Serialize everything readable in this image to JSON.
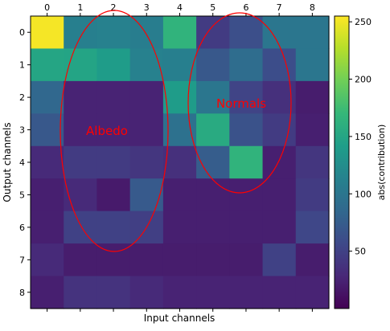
{
  "chart_data": {
    "type": "heatmap",
    "title": "",
    "xlabel": "Input channels",
    "ylabel": "Output channels",
    "x_ticks": [
      "0",
      "1",
      "2",
      "3",
      "4",
      "5",
      "6",
      "7",
      "8"
    ],
    "y_ticks": [
      "0",
      "1",
      "2",
      "3",
      "4",
      "5",
      "6",
      "7",
      "8"
    ],
    "colormap": "viridis",
    "colorbar": {
      "label": "abs(contribution)",
      "range": [
        0,
        255
      ],
      "ticks": [
        "50",
        "100",
        "150",
        "200",
        "250"
      ],
      "tick_values": [
        50,
        100,
        150,
        200,
        250
      ]
    },
    "values": [
      [
        252,
        110,
        112,
        108,
        165,
        45,
        62,
        100,
        100
      ],
      [
        150,
        148,
        140,
        112,
        110,
        70,
        90,
        60,
        100
      ],
      [
        85,
        25,
        25,
        25,
        140,
        100,
        52,
        35,
        20
      ],
      [
        70,
        25,
        25,
        25,
        95,
        155,
        65,
        45,
        22
      ],
      [
        30,
        45,
        45,
        40,
        35,
        75,
        165,
        22,
        40
      ],
      [
        22,
        30,
        18,
        72,
        22,
        22,
        22,
        22,
        45
      ],
      [
        22,
        50,
        50,
        48,
        22,
        22,
        22,
        22,
        55
      ],
      [
        30,
        20,
        20,
        20,
        20,
        20,
        20,
        50,
        20
      ],
      [
        22,
        38,
        38,
        30,
        25,
        25,
        25,
        25,
        25
      ]
    ],
    "annotations": [
      {
        "text": "Albedo",
        "color": "#ff0000"
      },
      {
        "text": "Normals",
        "color": "#ff0000"
      }
    ],
    "grid": false
  }
}
